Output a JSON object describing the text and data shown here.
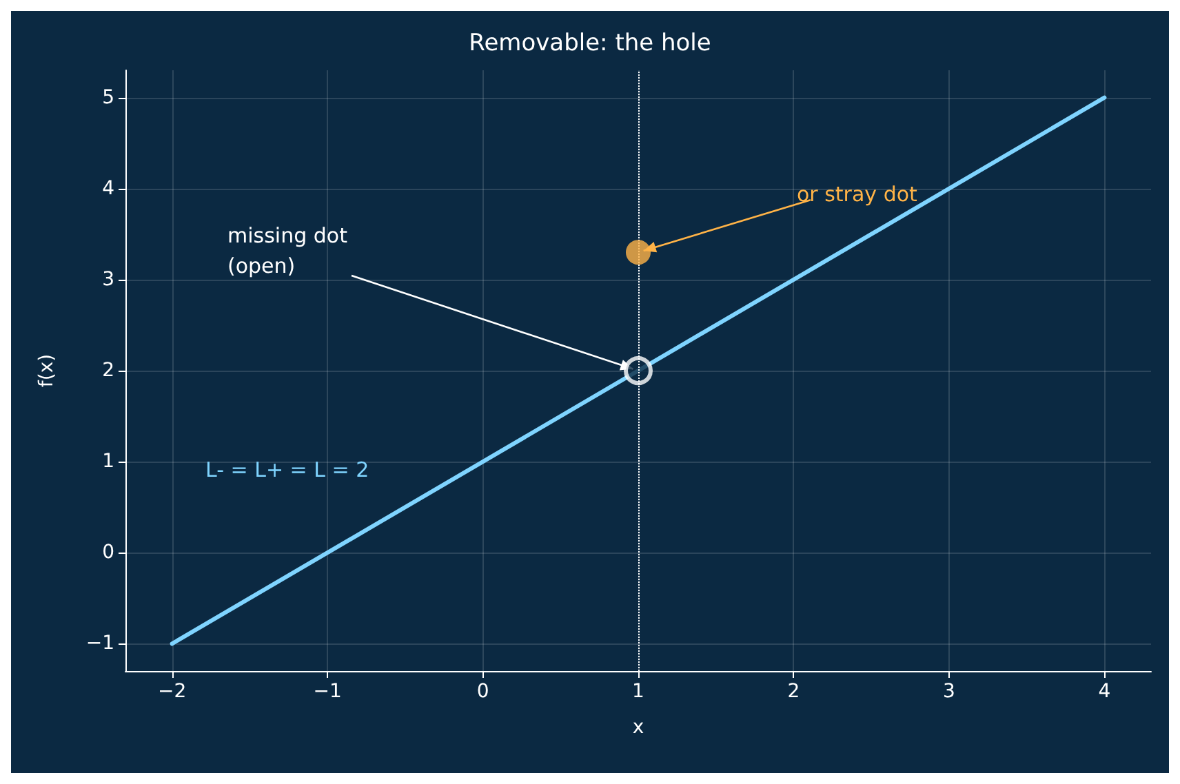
{
  "chart_data": {
    "type": "line",
    "title": "Removable: the hole",
    "xlabel": "x",
    "ylabel": "f(x)",
    "xlim": [
      -2.3,
      4.3
    ],
    "ylim": [
      -1.3,
      5.3
    ],
    "xticks": [
      -2,
      -1,
      0,
      1,
      2,
      3,
      4
    ],
    "yticks": [
      -1,
      0,
      1,
      2,
      3,
      4,
      5
    ],
    "grid": true,
    "series": [
      {
        "color": "#7fd4ff",
        "x": [
          -2,
          4
        ],
        "values": [
          -1,
          5
        ],
        "marker": "none"
      },
      {
        "type": "scatter",
        "color": "#ffffff",
        "x": [
          1
        ],
        "values": [
          2
        ],
        "marker": "circle"
      },
      {
        "type": "scatter",
        "color": "#ffb347",
        "x": [
          1
        ],
        "values": [
          3.3
        ],
        "marker": "circle"
      }
    ],
    "ref_lines": [
      {
        "axis": "x",
        "value": 1,
        "color": "#ffffff",
        "line_style": "dotted"
      }
    ],
    "annotations": [
      {
        "text": "missing dot\n(open)",
        "x": 1,
        "y": 2
      },
      {
        "text": "or stray dot",
        "x": 1,
        "y": 3.3
      },
      "L- = L+ = L = 2"
    ]
  }
}
